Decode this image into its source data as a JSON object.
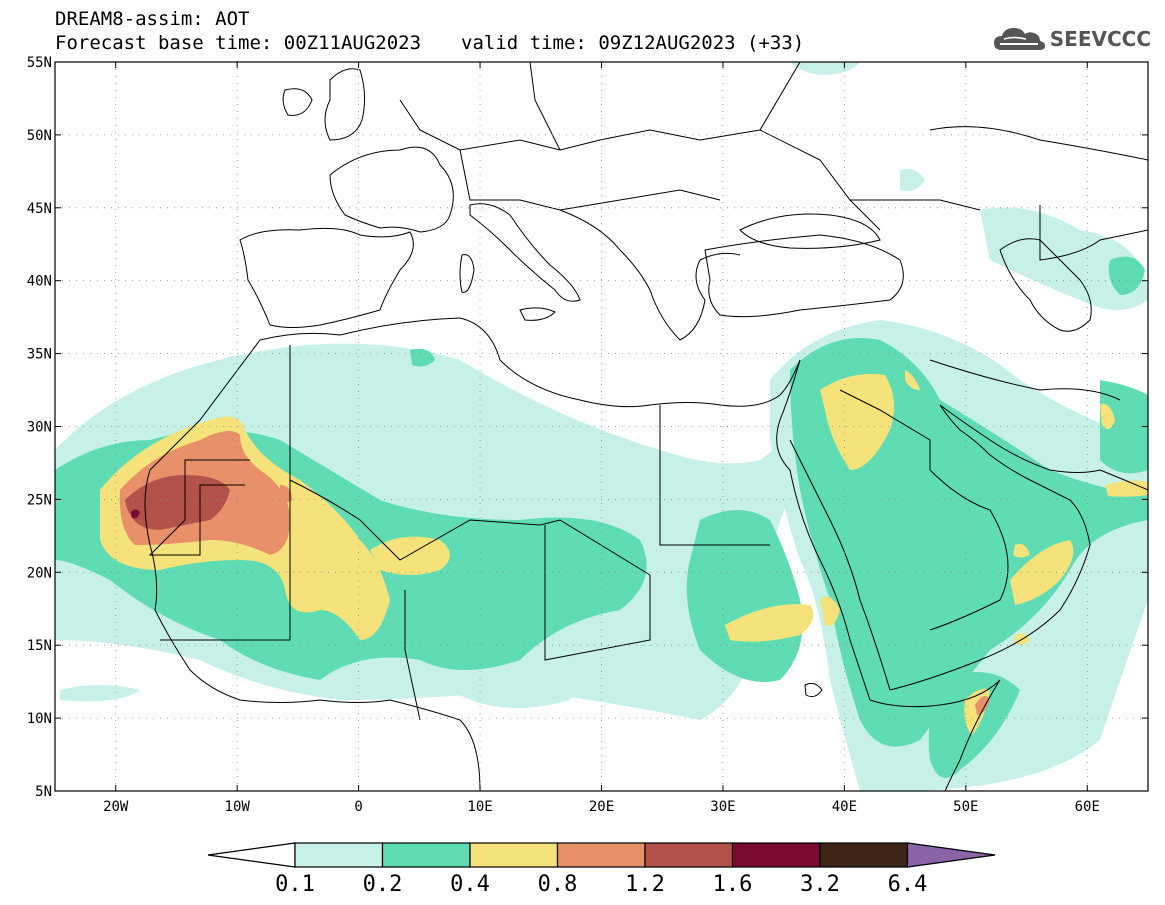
{
  "header": {
    "title_line1": "DREAM8-assim: AOT",
    "base_time": "Forecast base time: 00Z11AUG2023",
    "valid_time": "valid time: 09Z12AUG2023 (+33)"
  },
  "logo": {
    "text": "SEEVCCC",
    "icon": "cloud-logo-icon",
    "color": "#555555"
  },
  "map": {
    "lon_range": [
      -25,
      65
    ],
    "lat_range": [
      5,
      55
    ],
    "lon_ticks": [
      {
        "value": -20,
        "label": "20W"
      },
      {
        "value": -10,
        "label": "10W"
      },
      {
        "value": 0,
        "label": "0"
      },
      {
        "value": 10,
        "label": "10E"
      },
      {
        "value": 20,
        "label": "20E"
      },
      {
        "value": 30,
        "label": "30E"
      },
      {
        "value": 40,
        "label": "40E"
      },
      {
        "value": 50,
        "label": "50E"
      },
      {
        "value": 60,
        "label": "60E"
      }
    ],
    "lat_ticks": [
      {
        "value": 55,
        "label": "55N"
      },
      {
        "value": 50,
        "label": "50N"
      },
      {
        "value": 45,
        "label": "45N"
      },
      {
        "value": 40,
        "label": "40N"
      },
      {
        "value": 35,
        "label": "35N"
      },
      {
        "value": 30,
        "label": "30N"
      },
      {
        "value": 25,
        "label": "25N"
      },
      {
        "value": 20,
        "label": "20N"
      },
      {
        "value": 15,
        "label": "15N"
      },
      {
        "value": 10,
        "label": "10N"
      },
      {
        "value": 5,
        "label": "5N"
      }
    ],
    "grid": "dotted"
  },
  "colorbar": {
    "labels": [
      "0.1",
      "0.2",
      "0.4",
      "0.8",
      "1.2",
      "1.6",
      "3.2",
      "6.4"
    ],
    "colors": [
      "#c6f0e8",
      "#5fdcb4",
      "#f5e27a",
      "#e8906a",
      "#b2524a",
      "#7a0a32",
      "#3d2417"
    ],
    "under_color": "#ffffff",
    "over_color": "#8a63a8"
  }
}
